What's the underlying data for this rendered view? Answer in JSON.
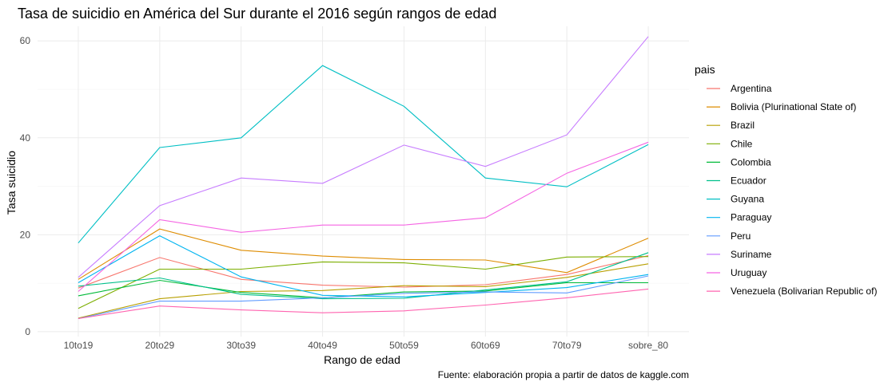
{
  "chart_data": {
    "type": "line",
    "title": "Tasa de suicidio en América del Sur durante el 2016 según rangos de edad",
    "xlabel": "Rango de edad",
    "ylabel": "Tasa suicidio",
    "caption": "Fuente: elaboración propia a partir de datos de kaggle.com",
    "legend_title": "pais",
    "legend_position": "right",
    "grid": true,
    "categories": [
      "10to19",
      "20to29",
      "30to39",
      "40to49",
      "50to59",
      "60to69",
      "70to79",
      "sobre_80"
    ],
    "yticks": [
      0,
      20,
      40,
      60
    ],
    "ylim": [
      -1,
      63
    ],
    "series": [
      {
        "name": "Argentina",
        "color": "#F8766D",
        "values": [
          9.0,
          15.3,
          10.8,
          9.6,
          9.2,
          9.7,
          11.8,
          15.7
        ]
      },
      {
        "name": "Bolivia (Plurinational State of)",
        "color": "#DE8C00",
        "values": [
          10.8,
          21.2,
          16.8,
          15.6,
          14.9,
          14.8,
          12.2,
          19.3
        ]
      },
      {
        "name": "Brazil",
        "color": "#B79F00",
        "values": [
          2.8,
          6.8,
          8.3,
          8.5,
          9.5,
          9.3,
          11.2,
          14.0
        ]
      },
      {
        "name": "Chile",
        "color": "#7CAE00",
        "values": [
          4.8,
          12.9,
          12.9,
          14.4,
          14.2,
          12.9,
          15.4,
          15.5
        ]
      },
      {
        "name": "Colombia",
        "color": "#00BA38",
        "values": [
          7.4,
          10.6,
          8.1,
          7.0,
          8.2,
          8.4,
          10.1,
          10.1
        ]
      },
      {
        "name": "Ecuador",
        "color": "#00C08B",
        "values": [
          9.4,
          11.1,
          7.7,
          6.8,
          6.9,
          8.6,
          10.3,
          16.3
        ]
      },
      {
        "name": "Guyana",
        "color": "#00BFC4",
        "values": [
          18.3,
          38.0,
          40.0,
          54.9,
          46.5,
          31.7,
          29.9,
          38.6
        ]
      },
      {
        "name": "Paraguay",
        "color": "#00B4F0",
        "values": [
          10.1,
          19.8,
          11.3,
          7.5,
          7.2,
          8.1,
          9.1,
          11.8
        ]
      },
      {
        "name": "Peru",
        "color": "#619CFF",
        "values": [
          2.7,
          6.3,
          6.3,
          7.0,
          7.9,
          8.2,
          8.0,
          11.5
        ]
      },
      {
        "name": "Suriname",
        "color": "#C77CFF",
        "values": [
          11.2,
          26.0,
          31.7,
          30.6,
          38.5,
          34.1,
          40.6,
          60.9
        ]
      },
      {
        "name": "Uruguay",
        "color": "#F564E3",
        "values": [
          8.3,
          23.1,
          20.5,
          22.0,
          22.0,
          23.5,
          32.7,
          39.1
        ]
      },
      {
        "name": "Venezuela (Bolivarian Republic of)",
        "color": "#FF64B0",
        "values": [
          2.7,
          5.3,
          4.5,
          3.9,
          4.3,
          5.5,
          7.0,
          8.8
        ]
      }
    ]
  }
}
